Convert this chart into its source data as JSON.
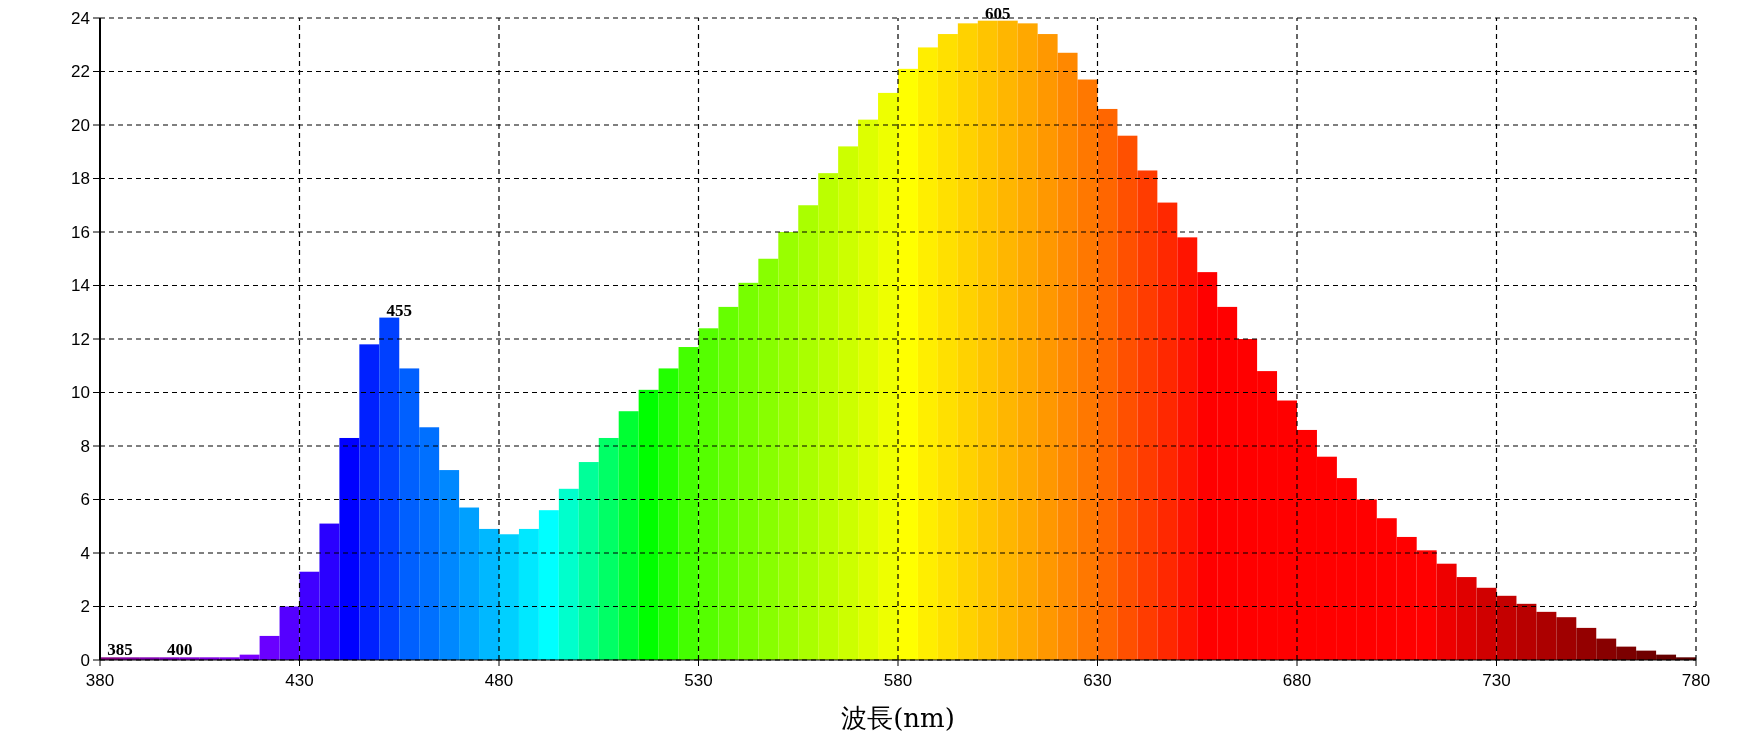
{
  "chart_data": {
    "type": "histogram",
    "xlabel": "波長(nm)",
    "bins": [
      380,
      385,
      390,
      395,
      400,
      405,
      410,
      415,
      420,
      425,
      430,
      435,
      440,
      445,
      450,
      455,
      460,
      465,
      470,
      475,
      480,
      485,
      490,
      495,
      500,
      505,
      510,
      515,
      520,
      525,
      530,
      535,
      540,
      545,
      550,
      555,
      560,
      565,
      570,
      575,
      580,
      585,
      590,
      595,
      600,
      605,
      610,
      615,
      620,
      625,
      630,
      635,
      640,
      645,
      650,
      655,
      660,
      665,
      670,
      675,
      680,
      685,
      690,
      695,
      700,
      705,
      710,
      715,
      720,
      725,
      730,
      735,
      740,
      745,
      750,
      755,
      760,
      765,
      770,
      775,
      780
    ],
    "values": [
      0.1,
      0.1,
      0.1,
      0.1,
      0.1,
      0.1,
      0.1,
      0.2,
      0.9,
      2.0,
      3.3,
      5.1,
      8.3,
      11.8,
      12.8,
      10.9,
      8.7,
      7.1,
      5.7,
      4.9,
      4.7,
      4.9,
      5.6,
      6.4,
      7.4,
      8.3,
      9.3,
      10.1,
      10.9,
      11.7,
      12.4,
      13.2,
      14.1,
      15.0,
      16.0,
      17.0,
      18.2,
      19.2,
      20.2,
      21.2,
      22.1,
      22.9,
      23.4,
      23.8,
      23.9,
      23.9,
      23.8,
      23.4,
      22.7,
      21.7,
      20.6,
      19.6,
      18.3,
      17.1,
      15.8,
      14.5,
      13.2,
      12.0,
      10.8,
      9.7,
      8.6,
      7.6,
      6.8,
      6.0,
      5.3,
      4.6,
      4.1,
      3.6,
      3.1,
      2.7,
      2.4,
      2.1,
      1.8,
      1.6,
      1.2,
      0.8,
      0.5,
      0.35,
      0.2,
      0.1
    ],
    "colors": [
      "#800080",
      "#8000a0",
      "#8000b0",
      "#8000c0",
      "#8000d0",
      "#8000e0",
      "#8000f0",
      "#7a00ff",
      "#6a00ff",
      "#5500ff",
      "#4000ff",
      "#2a00ff",
      "#0000ff",
      "#0020ff",
      "#0040ff",
      "#0060ff",
      "#0070ff",
      "#0088ff",
      "#00a0ff",
      "#00b8ff",
      "#00d0ff",
      "#00e8ff",
      "#00ffff",
      "#00ffcc",
      "#00ff99",
      "#00ff66",
      "#00ff33",
      "#00ff00",
      "#22ff00",
      "#44ff00",
      "#55ff00",
      "#66ff00",
      "#77ff00",
      "#88ff00",
      "#99ff00",
      "#aaff00",
      "#bbff00",
      "#ccff00",
      "#ddff00",
      "#eeff00",
      "#ffff00",
      "#ffee00",
      "#ffe000",
      "#ffd200",
      "#ffc400",
      "#ffb600",
      "#ffa800",
      "#ff9800",
      "#ff8800",
      "#ff7800",
      "#ff6600",
      "#ff5000",
      "#ff3c00",
      "#ff2800",
      "#ff1400",
      "#ff0000",
      "#ff0000",
      "#ff0000",
      "#ff0000",
      "#ff0000",
      "#ff0000",
      "#ff0000",
      "#ff0000",
      "#ff0000",
      "#ff0000",
      "#ff0000",
      "#ff0000",
      "#ee0000",
      "#e00000",
      "#d00000",
      "#c40000",
      "#b80000",
      "#ac0000",
      "#a00000",
      "#940000",
      "#880000",
      "#7c0000",
      "#700000",
      "#660000",
      "#5c0000"
    ],
    "xlim": [
      380,
      780
    ],
    "xticks": [
      380,
      430,
      480,
      530,
      580,
      630,
      680,
      730,
      780
    ],
    "ylim": [
      0,
      24
    ],
    "yticks": [
      0,
      2,
      4,
      6,
      8,
      10,
      12,
      14,
      16,
      18,
      20,
      22,
      24
    ],
    "grid": true,
    "annotations": [
      {
        "text": "385",
        "x": 385,
        "y": 0.1
      },
      {
        "text": "400",
        "x": 400,
        "y": 0.1
      },
      {
        "text": "455",
        "x": 455,
        "y": 12.8
      },
      {
        "text": "605",
        "x": 605,
        "y": 23.9
      }
    ]
  }
}
